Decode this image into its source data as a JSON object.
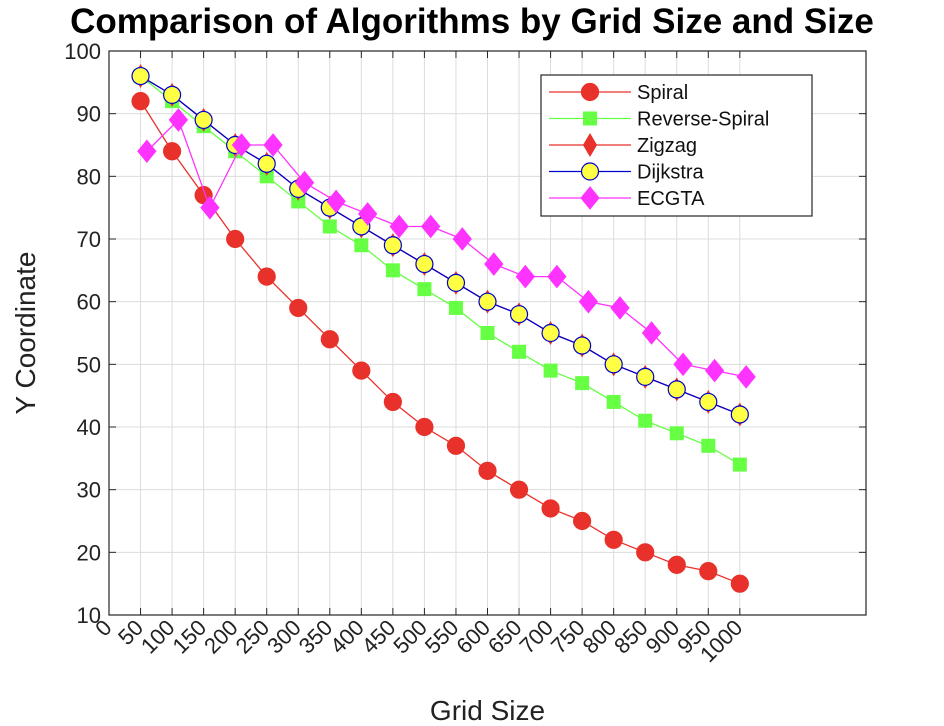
{
  "chart_data": {
    "type": "line",
    "title": "Comparison of Algorithms by Grid Size and Size",
    "xlabel": "Grid Size",
    "ylabel": "Y Coordinate",
    "xlim": [
      0,
      1200
    ],
    "ylim": [
      10,
      100
    ],
    "xticks": [
      0,
      50,
      100,
      150,
      200,
      250,
      300,
      350,
      400,
      450,
      500,
      550,
      600,
      650,
      700,
      750,
      800,
      850,
      900,
      950,
      1000
    ],
    "yticks": [
      10,
      20,
      30,
      40,
      50,
      60,
      70,
      80,
      90,
      100
    ],
    "grid": true,
    "legend_position": "top-right",
    "series": [
      {
        "name": "Spiral",
        "color": "#e8312a",
        "line_color": "#e8312a",
        "marker": "circle",
        "x": [
          50,
          100,
          150,
          200,
          250,
          300,
          350,
          400,
          450,
          500,
          550,
          600,
          650,
          700,
          750,
          800,
          850,
          900,
          950,
          1000
        ],
        "y": [
          92,
          84,
          77,
          70,
          64,
          59,
          54,
          49,
          44,
          40,
          37,
          33,
          30,
          27,
          25,
          22,
          20,
          18,
          17,
          15
        ]
      },
      {
        "name": "Reverse-Spiral",
        "color": "#66ff44",
        "line_color": "#66ff44",
        "marker": "square",
        "x": [
          50,
          100,
          150,
          200,
          250,
          300,
          350,
          400,
          450,
          500,
          550,
          600,
          650,
          700,
          750,
          800,
          850,
          900,
          950,
          1000
        ],
        "y": [
          96,
          92,
          88,
          84,
          80,
          76,
          72,
          69,
          65,
          62,
          59,
          55,
          52,
          49,
          47,
          44,
          41,
          39,
          37,
          34
        ]
      },
      {
        "name": "Zigzag",
        "color": "#e8312a",
        "line_color": "#e8312a",
        "marker": "thin-diamond",
        "x": [
          50,
          100,
          150,
          200,
          250,
          300,
          350,
          400,
          450,
          500,
          550,
          600,
          650,
          700,
          750,
          800,
          850,
          900,
          950,
          1000
        ],
        "y": [
          96,
          93,
          89,
          85,
          82,
          78,
          75,
          72,
          69,
          66,
          63,
          60,
          58,
          55,
          53,
          50,
          48,
          46,
          44,
          42
        ]
      },
      {
        "name": "Dijkstra",
        "color": "#ffff44",
        "line_color": "#0000cc",
        "marker": "circle",
        "x": [
          50,
          100,
          150,
          200,
          250,
          300,
          350,
          400,
          450,
          500,
          550,
          600,
          650,
          700,
          750,
          800,
          850,
          900,
          950,
          1000
        ],
        "y": [
          96,
          93,
          89,
          85,
          82,
          78,
          75,
          72,
          69,
          66,
          63,
          60,
          58,
          55,
          53,
          50,
          48,
          46,
          44,
          42
        ]
      },
      {
        "name": "ECGTA",
        "color": "#ff33ff",
        "line_color": "#ff33ff",
        "marker": "diamond",
        "x": [
          60,
          110,
          160,
          210,
          260,
          310,
          360,
          410,
          460,
          510,
          560,
          610,
          660,
          710,
          760,
          810,
          860,
          910,
          960,
          1010
        ],
        "y": [
          84,
          89,
          75,
          85,
          85,
          79,
          76,
          74,
          72,
          72,
          70,
          66,
          64,
          64,
          60,
          59,
          55,
          50,
          49,
          48
        ]
      }
    ]
  }
}
